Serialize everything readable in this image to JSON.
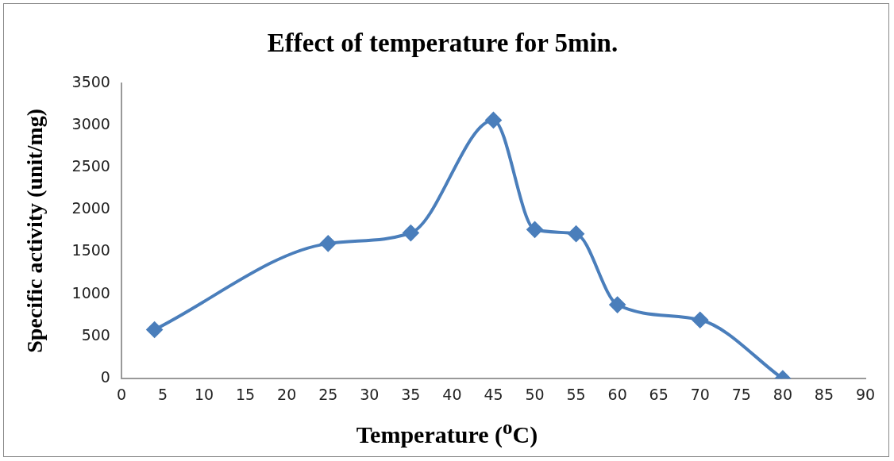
{
  "chart_data": {
    "type": "line",
    "title": "Effect of temperature for 5min.",
    "xlabel": "Temperature ($^{o}$C)",
    "ylabel": "Specific activity (unit/mg)",
    "x": [
      4,
      25,
      35,
      45,
      50,
      55,
      60,
      70,
      80
    ],
    "series": [
      {
        "color": "#4a7ebb",
        "values": [
          580,
          1600,
          1725,
          3060,
          1765,
          1715,
          875,
          695,
          0
        ]
      }
    ],
    "xlim": [
      0,
      90
    ],
    "xticks": [
      0,
      5,
      10,
      15,
      20,
      25,
      30,
      35,
      40,
      45,
      50,
      55,
      60,
      65,
      70,
      75,
      80,
      85,
      90
    ],
    "ylim": [
      0,
      3500
    ],
    "yticks": [
      0,
      500,
      1000,
      1500,
      2000,
      2500,
      3000,
      3500
    ],
    "grid": false,
    "legend": false,
    "marker": "diamond",
    "line_style": "solid"
  }
}
